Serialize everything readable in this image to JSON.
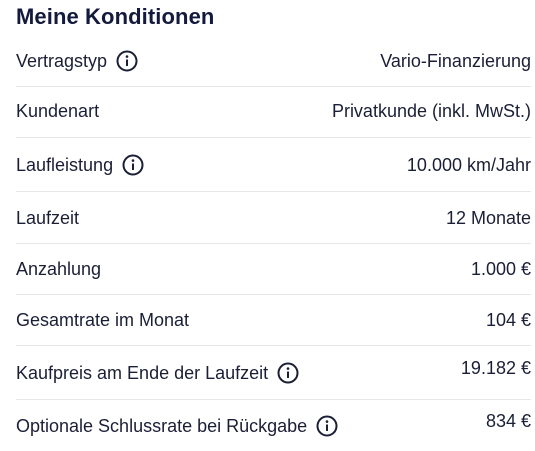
{
  "title": "Meine Konditionen",
  "rows": [
    {
      "label": "Vertragstyp",
      "value": "Vario-Finanzierung",
      "has_info": true
    },
    {
      "label": "Kundenart",
      "value": "Privatkunde (inkl. MwSt.)",
      "has_info": false
    },
    {
      "label": "Laufleistung",
      "value": "10.000 km/Jahr",
      "has_info": true
    },
    {
      "label": "Laufzeit",
      "value": "12 Monate",
      "has_info": false
    },
    {
      "label": "Anzahlung",
      "value": "1.000 €",
      "has_info": false
    },
    {
      "label": "Gesamtrate im Monat",
      "value": "104 €",
      "has_info": false
    },
    {
      "label": "Kaufpreis am Ende der Laufzeit",
      "value": "19.182 €",
      "has_info": true
    },
    {
      "label": "Optionale Schlussrate bei Rückgabe",
      "value": "834 €",
      "has_info": true
    }
  ],
  "icons": {
    "info": "info-circle-icon"
  },
  "colors": {
    "text": "#1a1f36",
    "title": "#141a3d",
    "divider": "#e6e7ea"
  }
}
